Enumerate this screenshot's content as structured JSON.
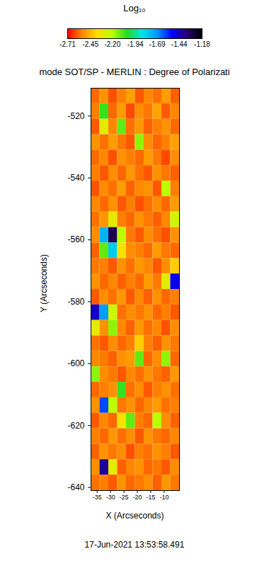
{
  "chart_data": {
    "type": "heatmap",
    "title": "mode SOT/SP - MERLIN : Degree of Polarizati",
    "x_label": "X (Arcseconds)",
    "y_label": "Y (Arcseconds)",
    "caption": "17-Jun-2021 13:53:58.491",
    "xlim": [
      -37.3,
      -4.3
    ],
    "ylim": [
      -641,
      -511
    ],
    "xticks": [
      -35,
      -30,
      -25,
      -20,
      -15,
      -10
    ],
    "yticks": [
      -640,
      -620,
      -600,
      -580,
      -560,
      -540,
      -520
    ],
    "x_edges": [
      -37.3,
      -34,
      -30.7,
      -27.4,
      -24.1,
      -20.8,
      -17.5,
      -14.2,
      -10.9,
      -7.6,
      -4.3
    ],
    "y_edges": [
      -511,
      -516,
      -521,
      -526,
      -531,
      -536,
      -541,
      -546,
      -551,
      -556,
      -561,
      -566,
      -571,
      -576,
      -581,
      -586,
      -591,
      -596,
      -601,
      -606,
      -611,
      -616,
      -621,
      -626,
      -631,
      -636,
      -641
    ],
    "z": [
      [
        -2.58,
        -2.52,
        -2.61,
        -2.55,
        -2.49,
        -2.6,
        -2.54,
        -2.57,
        -2.5,
        -2.59
      ],
      [
        -2.55,
        -2.05,
        -2.58,
        -2.5,
        -2.62,
        -2.53,
        -2.56,
        -2.48,
        -2.6,
        -2.54
      ],
      [
        -2.6,
        -2.3,
        -2.54,
        -2.1,
        -2.57,
        -2.51,
        -2.59,
        -2.55,
        -2.52,
        -2.58
      ],
      [
        -2.52,
        -2.57,
        -2.5,
        -2.56,
        -2.6,
        -2.15,
        -2.53,
        -2.58,
        -2.55,
        -2.49
      ],
      [
        -2.58,
        -2.54,
        -2.61,
        -2.52,
        -2.55,
        -2.58,
        -2.5,
        -2.56,
        -2.62,
        -2.53
      ],
      [
        -2.55,
        -2.6,
        -2.53,
        -2.58,
        -2.51,
        -2.57,
        -2.6,
        -2.52,
        -2.56,
        -2.59
      ],
      [
        -2.61,
        -2.53,
        -2.57,
        -2.5,
        -2.59,
        -2.54,
        -2.52,
        -2.6,
        -2.2,
        -2.55
      ],
      [
        -2.54,
        -2.58,
        -2.52,
        -2.6,
        -2.55,
        -2.61,
        -2.57,
        -2.53,
        -2.58,
        -2.5
      ],
      [
        -2.57,
        -2.51,
        -2.3,
        -2.55,
        -2.58,
        -2.52,
        -2.56,
        -2.59,
        -2.54,
        -2.25
      ],
      [
        -2.53,
        -1.75,
        -1.3,
        -2.2,
        -2.56,
        -2.6,
        -2.53,
        -2.57,
        -2.61,
        -2.52
      ],
      [
        -2.59,
        -2.1,
        -1.8,
        -2.35,
        -2.53,
        -2.55,
        -2.58,
        -2.5,
        -2.56,
        -2.58
      ],
      [
        -2.56,
        -2.55,
        -2.6,
        -2.52,
        -2.57,
        -2.51,
        -2.54,
        -2.6,
        -2.53,
        -2.4
      ],
      [
        -2.52,
        -2.58,
        -2.54,
        -2.59,
        -2.55,
        -2.58,
        -2.5,
        -2.56,
        -2.3,
        -1.5
      ],
      [
        -2.6,
        -2.53,
        -2.57,
        -2.51,
        -2.6,
        -2.54,
        -2.59,
        -2.52,
        -2.58,
        -2.55
      ],
      [
        -1.45,
        -1.7,
        -2.25,
        -2.57,
        -2.53,
        -2.56,
        -2.52,
        -2.58,
        -2.55,
        -2.6
      ],
      [
        -2.3,
        -2.52,
        -2.15,
        -2.54,
        -2.59,
        -2.51,
        -2.57,
        -2.54,
        -2.61,
        -2.53
      ],
      [
        -2.57,
        -2.6,
        -2.53,
        -2.58,
        -2.55,
        -2.4,
        -2.55,
        -2.59,
        -2.52,
        -2.56
      ],
      [
        -2.54,
        -2.56,
        -2.59,
        -2.52,
        -2.5,
        -2.1,
        -2.58,
        -2.53,
        -2.15,
        -2.58
      ],
      [
        -2.15,
        -2.53,
        -2.56,
        -2.6,
        -2.54,
        -2.57,
        -2.52,
        -2.56,
        -2.59,
        -2.51
      ],
      [
        -2.58,
        -2.55,
        -2.52,
        -2.05,
        -2.57,
        -2.53,
        -2.6,
        -2.55,
        -2.52,
        -2.57
      ],
      [
        -2.52,
        -1.6,
        -2.2,
        -2.56,
        -2.52,
        -2.58,
        -2.54,
        -2.5,
        -2.57,
        -2.55
      ],
      [
        -2.6,
        -2.54,
        -2.58,
        -2.35,
        -2.1,
        -2.55,
        -2.58,
        -2.2,
        -2.53,
        -2.59
      ],
      [
        -2.55,
        -2.58,
        -2.51,
        -2.57,
        -2.53,
        -2.6,
        -2.52,
        -2.56,
        -2.58,
        -2.54
      ],
      [
        -2.59,
        -2.52,
        -2.56,
        -2.53,
        -2.61,
        -2.55,
        -2.57,
        -2.52,
        -2.55,
        -2.6
      ],
      [
        -2.53,
        -1.4,
        -2.3,
        -2.59,
        -2.54,
        -2.52,
        -2.58,
        -2.56,
        -2.6,
        -2.53
      ],
      [
        -2.57,
        -2.55,
        -2.6,
        -2.52,
        -2.58,
        -2.56,
        -2.53,
        -2.59,
        -2.51,
        -2.56
      ]
    ],
    "colorbar": {
      "title": "Log₁₀",
      "lim": [
        -2.71,
        -1.18
      ],
      "ticks": [
        -2.71,
        -2.45,
        {
          "value": -2.2,
          "label": "-2.20"
        },
        -1.94,
        -1.69,
        -1.44,
        -1.18
      ]
    }
  }
}
